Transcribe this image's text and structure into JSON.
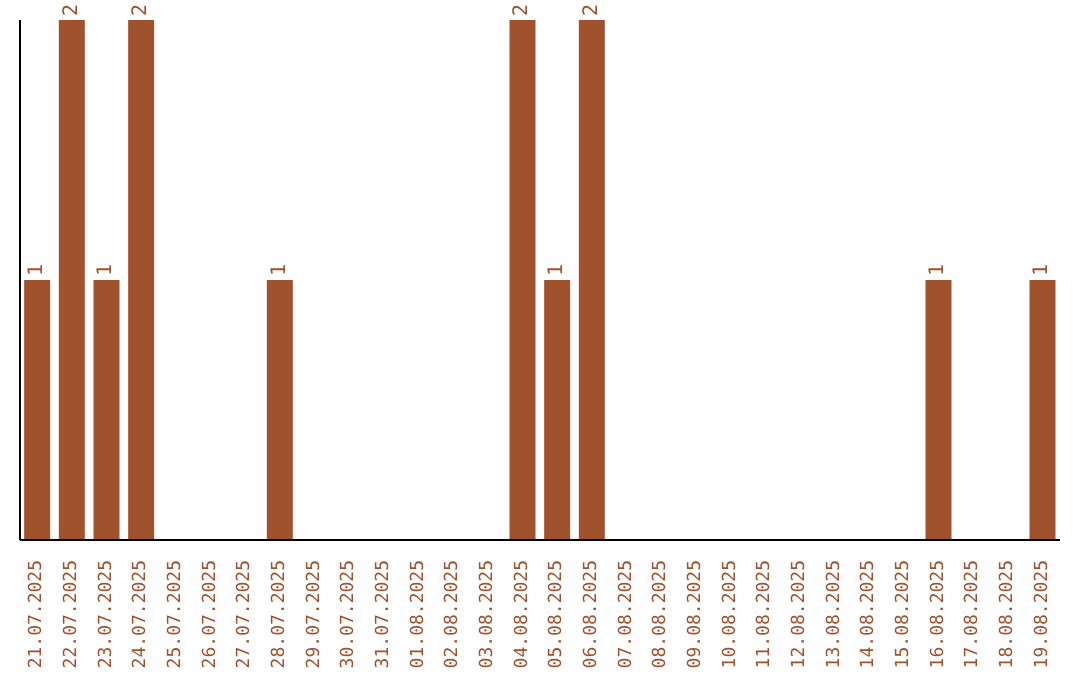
{
  "chart_data": {
    "type": "bar",
    "categories": [
      "21.07.2025",
      "22.07.2025",
      "23.07.2025",
      "24.07.2025",
      "25.07.2025",
      "26.07.2025",
      "27.07.2025",
      "28.07.2025",
      "29.07.2025",
      "30.07.2025",
      "31.07.2025",
      "01.08.2025",
      "02.08.2025",
      "03.08.2025",
      "04.08.2025",
      "05.08.2025",
      "06.08.2025",
      "07.08.2025",
      "08.08.2025",
      "09.08.2025",
      "10.08.2025",
      "11.08.2025",
      "12.08.2025",
      "13.08.2025",
      "14.08.2025",
      "15.08.2025",
      "16.08.2025",
      "17.08.2025",
      "18.08.2025",
      "19.08.2025"
    ],
    "values": [
      1,
      2,
      1,
      2,
      0,
      0,
      0,
      1,
      0,
      0,
      0,
      0,
      0,
      0,
      2,
      1,
      2,
      0,
      0,
      0,
      0,
      0,
      0,
      0,
      0,
      0,
      1,
      0,
      0,
      1
    ],
    "value_labels": [
      "1",
      "2",
      "1",
      "2",
      null,
      null,
      null,
      "1",
      null,
      null,
      null,
      null,
      null,
      null,
      "2",
      "1",
      "2",
      null,
      null,
      null,
      null,
      null,
      null,
      null,
      null,
      null,
      "1",
      null,
      null,
      "1"
    ],
    "color": "#a0522d",
    "grid": false,
    "legend": false
  }
}
